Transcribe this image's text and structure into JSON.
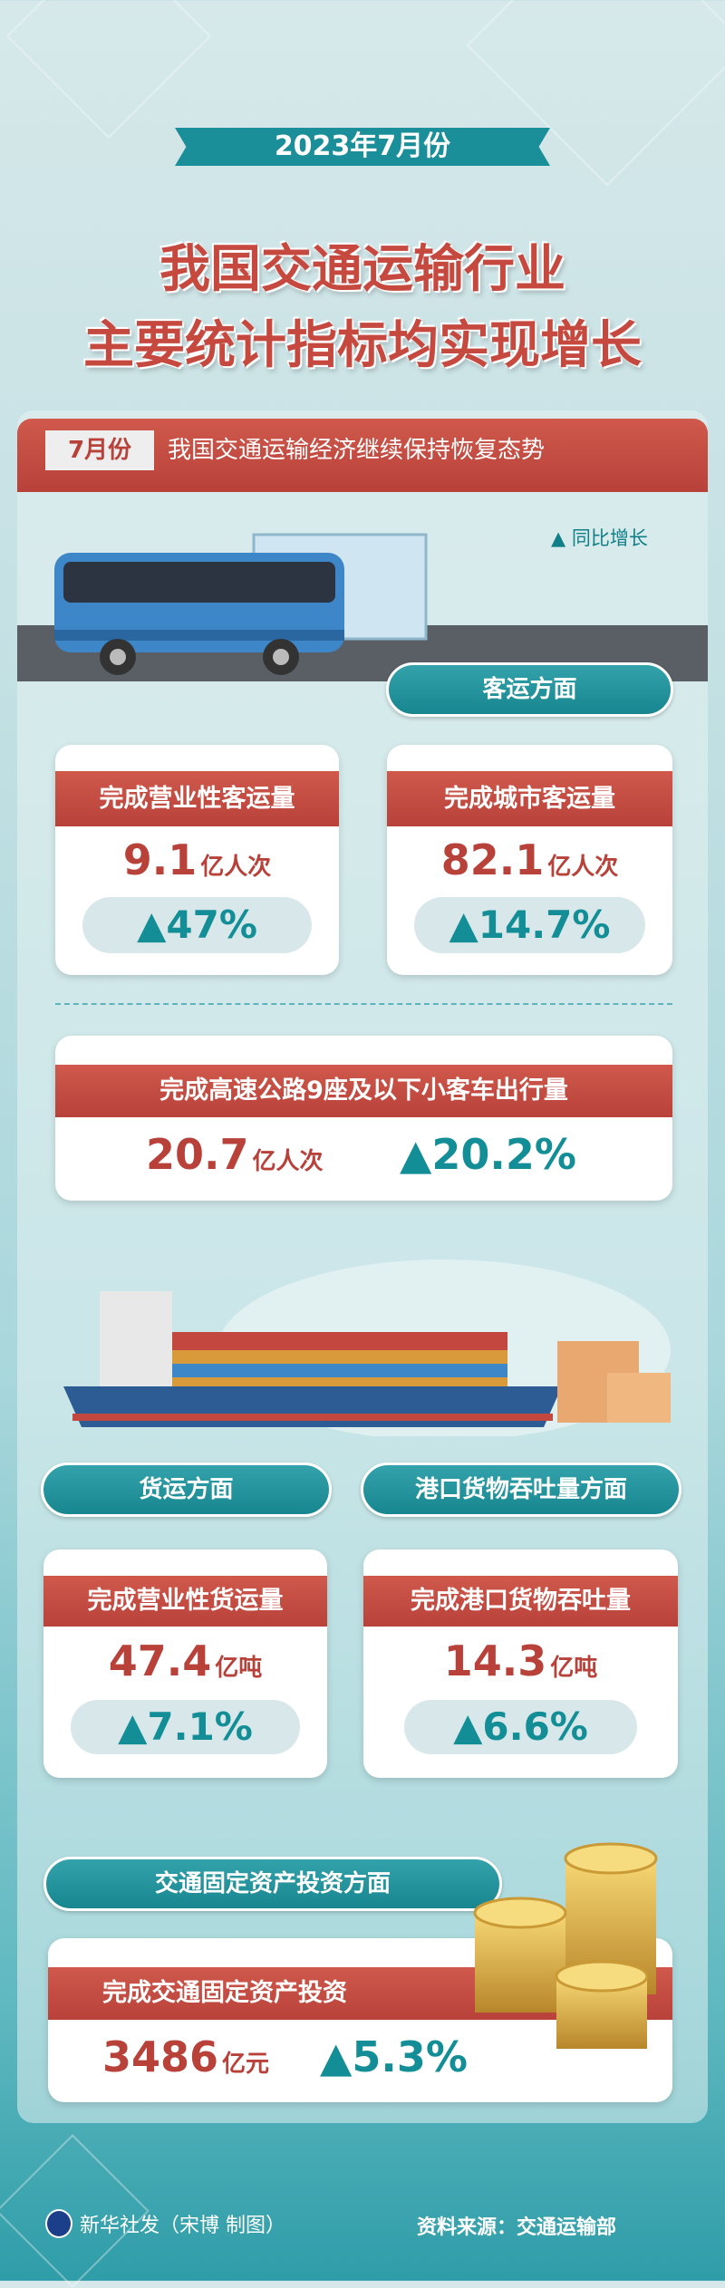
{
  "header": {
    "date": "2023年7月份",
    "title_line1": "我国交通运输行业",
    "title_line2": "主要统计指标均实现增长"
  },
  "section": {
    "tag": "7月份",
    "subtitle": "我国交通运输经济继续保持恢复态势",
    "legend": "▲ 同比增长"
  },
  "passenger": {
    "label": "客运方面",
    "cards": [
      {
        "title": "完成营业性客运量",
        "value": "9.1",
        "unit": "亿人次",
        "growth": "▲47%"
      },
      {
        "title": "完成城市客运量",
        "value": "82.1",
        "unit": "亿人次",
        "growth": "▲14.7%"
      }
    ],
    "wide": {
      "title": "完成高速公路9座及以下小客车出行量",
      "value": "20.7",
      "unit": "亿人次",
      "growth": "▲20.2%"
    }
  },
  "freight": {
    "label": "货运方面",
    "card": {
      "title": "完成营业性货运量",
      "value": "47.4",
      "unit": "亿吨",
      "growth": "▲7.1%"
    }
  },
  "port": {
    "label": "港口货物吞吐量方面",
    "card": {
      "title": "完成港口货物吞吐量",
      "value": "14.3",
      "unit": "亿吨",
      "growth": "▲6.6%"
    }
  },
  "investment": {
    "label": "交通固定资产投资方面",
    "card": {
      "title": "完成交通固定资产投资",
      "value": "3486",
      "unit": "亿元",
      "growth": "▲5.3%"
    }
  },
  "footer": {
    "credit": "新华社发（宋博 制图）",
    "source": "资料来源：交通运输部"
  },
  "colors": {
    "red": "#c6493f",
    "teal": "#138e96"
  }
}
